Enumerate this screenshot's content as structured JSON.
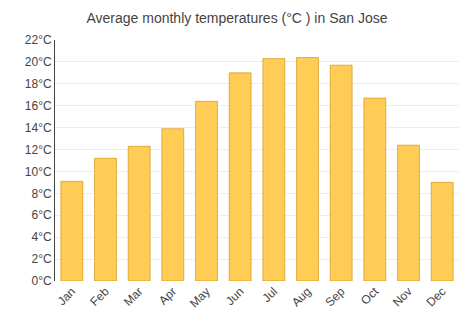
{
  "chart_data": {
    "type": "bar",
    "title": "Average monthly temperatures (°C ) in San Jose",
    "categories": [
      "Jan",
      "Feb",
      "Mar",
      "Apr",
      "May",
      "Jun",
      "Jul",
      "Aug",
      "Sep",
      "Oct",
      "Nov",
      "Dec"
    ],
    "values": [
      9.1,
      11.2,
      12.3,
      13.9,
      16.4,
      19.0,
      20.3,
      20.4,
      19.7,
      16.7,
      12.4,
      9.0
    ],
    "color": "#FFCC55",
    "ylim": [
      0,
      22
    ],
    "yticks": [
      {
        "value": 0,
        "label": "0°C"
      },
      {
        "value": 2,
        "label": "2°C"
      },
      {
        "value": 4,
        "label": "4°C"
      },
      {
        "value": 6,
        "label": "6°C"
      },
      {
        "value": 8,
        "label": "8°C"
      },
      {
        "value": 10,
        "label": "10°C"
      },
      {
        "value": 12,
        "label": "12°C"
      },
      {
        "value": 14,
        "label": "14°C"
      },
      {
        "value": 16,
        "label": "16°C"
      },
      {
        "value": 18,
        "label": "18°C"
      },
      {
        "value": 20,
        "label": "20°C"
      },
      {
        "value": 22,
        "label": "22°C"
      }
    ],
    "grid": true
  }
}
